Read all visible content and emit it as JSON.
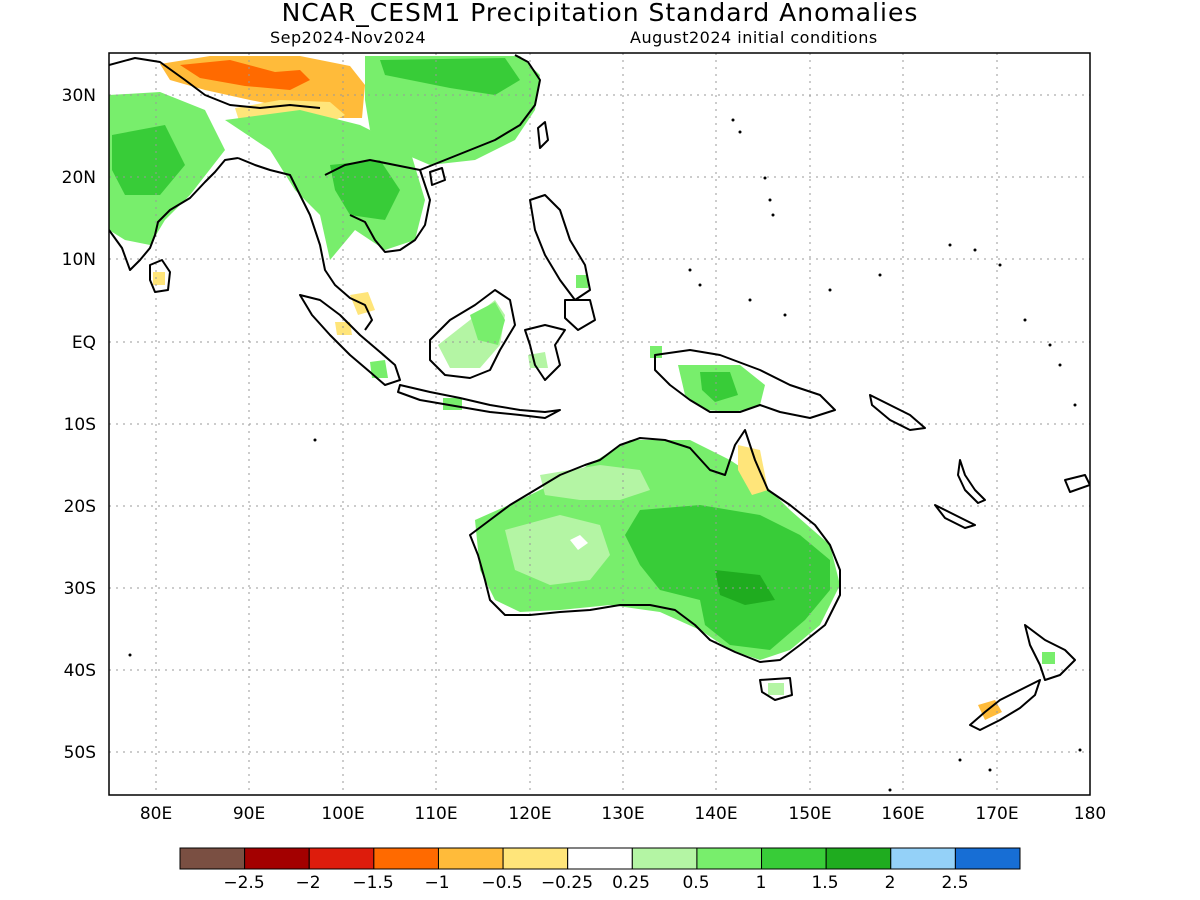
{
  "title": "NCAR_CESM1 Precipitation Standard Anomalies",
  "subtitle_left": "Sep2024-Nov2024",
  "subtitle_right": "August2024 initial conditions",
  "map": {
    "lon_range": [
      75,
      180
    ],
    "lat_range": [
      -55,
      35
    ],
    "lon_ticks": [
      "80E",
      "90E",
      "100E",
      "110E",
      "120E",
      "130E",
      "140E",
      "150E",
      "160E",
      "170E",
      "180"
    ],
    "lat_ticks": [
      "30N",
      "20N",
      "10N",
      "EQ",
      "10S",
      "20S",
      "30S",
      "40S",
      "50S"
    ],
    "grid": "dotted"
  },
  "colorbar": {
    "colors": [
      "#7a4f42",
      "#a30000",
      "#dd1c0c",
      "#ff6a00",
      "#ffbb3a",
      "#ffe57a",
      "#ffffff",
      "#b4f5a4",
      "#78ee6c",
      "#38cc38",
      "#1fac1f",
      "#94d1f8",
      "#176ed5"
    ],
    "labels": [
      "−2.5",
      "−2",
      "−1.5",
      "−1",
      "−0.5",
      "−0.25",
      "0.25",
      "0.5",
      "1",
      "1.5",
      "2",
      "2.5"
    ]
  }
}
